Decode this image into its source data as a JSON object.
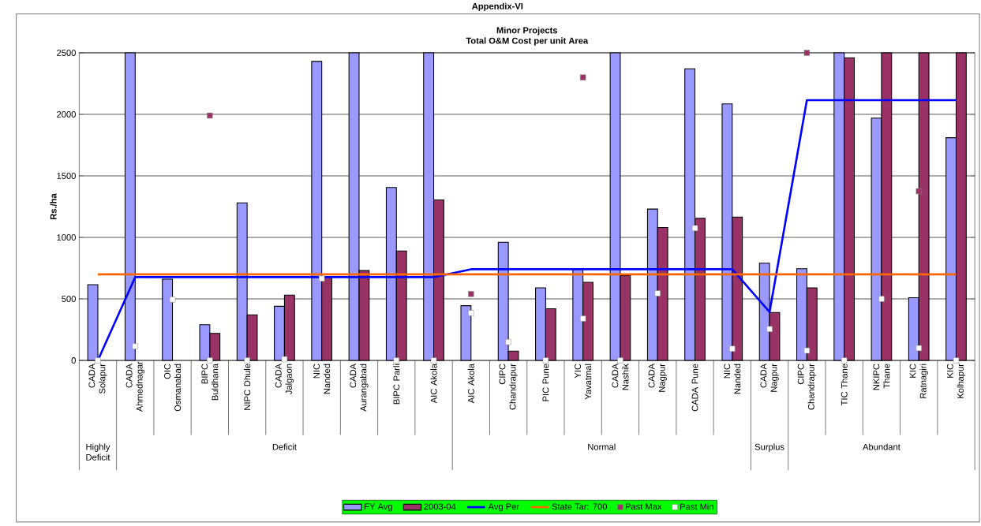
{
  "chart_data": {
    "type": "bar",
    "title": "Minor Projects",
    "subtitle": "Total O&M  Cost per unit Area",
    "ylabel": "Rs./ha",
    "annotations": [
      "Appendix-VI",
      "Highly Deficit",
      "Deficit",
      "Normal",
      "Surplus",
      "Abundant"
    ],
    "categories": [
      "CADA Solapur",
      "CADA Ahmednagar",
      "OIC Osmanabad",
      "BIPC Buldhana",
      "NIPC Dhule",
      "CADA Jalgaon",
      "NIC Nanded",
      "CADA Aurangabad",
      "BIPC Parli",
      "AIC Akola",
      "AIC Akola",
      "CIPC Chandrapur",
      "PIC Pune",
      "YIC Yavatmal",
      "CADA Nashik",
      "CADA Nagpur",
      "CADA Pune",
      "NIC Nanded",
      "CADA Nagpur",
      "CIPC Chandrapur",
      "TIC Thane",
      "NKIPC Thane",
      "KIC Ratnagiri",
      "KIC Kolhapur"
    ],
    "series": [
      {
        "name": "FY Avg",
        "color": "#9999ff",
        "values": [
          615,
          2500,
          660,
          290,
          1280,
          440,
          2430,
          2500,
          1405,
          2500,
          445,
          960,
          590,
          740,
          2500,
          1230,
          2370,
          2085,
          790,
          745,
          2500,
          1970,
          510,
          1810
        ]
      },
      {
        "name": "2003-04",
        "color": "#993366",
        "values": [
          null,
          null,
          null,
          220,
          370,
          530,
          680,
          730,
          890,
          1305,
          null,
          75,
          420,
          635,
          690,
          1080,
          1155,
          1165,
          390,
          590,
          2460,
          2500,
          2500,
          2500
        ]
      },
      {
        "name": "Avg Per",
        "type": "line",
        "color": "#0000ff",
        "values": [
          0,
          677,
          677,
          677,
          677,
          677,
          677,
          677,
          677,
          677,
          741,
          741,
          741,
          741,
          741,
          741,
          741,
          741,
          393,
          2115,
          2115,
          2115,
          2115,
          2115
        ]
      },
      {
        "name": "State Tar: 700",
        "type": "line",
        "color": "#ff6600",
        "values": [
          700,
          700,
          700,
          700,
          700,
          700,
          700,
          700,
          700,
          700,
          700,
          700,
          700,
          700,
          700,
          700,
          700,
          700,
          700,
          700,
          700,
          700,
          700,
          700
        ]
      },
      {
        "name": "Past Max",
        "type": "scatter",
        "color": "#993366",
        "marker": "square",
        "values": [
          null,
          null,
          null,
          1990,
          null,
          null,
          null,
          null,
          null,
          null,
          540,
          null,
          null,
          2300,
          null,
          null,
          null,
          null,
          null,
          2500,
          null,
          null,
          1375,
          null
        ]
      },
      {
        "name": "Past Min",
        "type": "scatter",
        "color": "#ffffff",
        "marker": "square",
        "values": [
          0,
          115,
          495,
          0,
          0,
          10,
          665,
          null,
          0,
          0,
          385,
          150,
          0,
          340,
          0,
          545,
          1075,
          95,
          255,
          80,
          0,
          500,
          100,
          0
        ]
      }
    ],
    "ylim": [
      0,
      2500
    ],
    "yticks": [
      0,
      500,
      1000,
      1500,
      2000,
      2500
    ],
    "grid": "y",
    "legend": "bottom"
  }
}
